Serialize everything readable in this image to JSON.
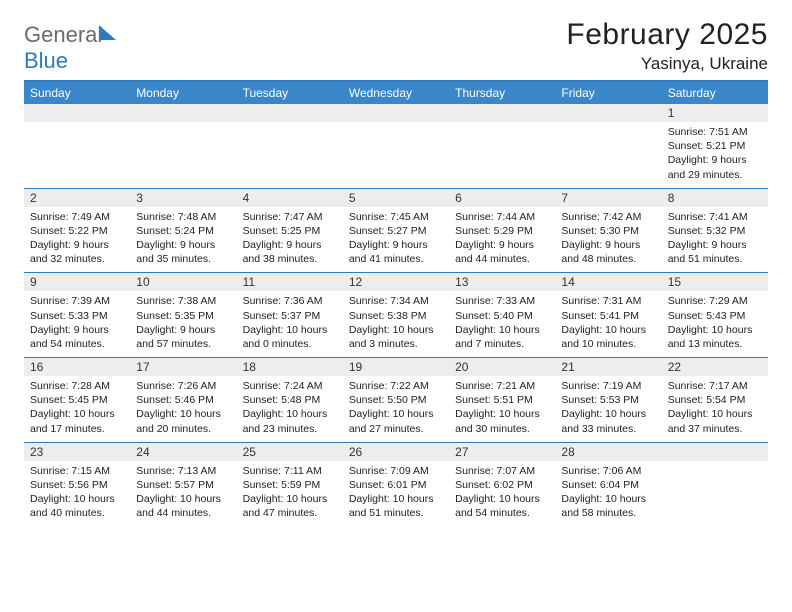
{
  "logo": {
    "word1": "General",
    "word2": "Blue",
    "accent_color": "#2e7bbf",
    "gray_color": "#6b6b6b"
  },
  "title": "February 2025",
  "location": "Yasinya, Ukraine",
  "colors": {
    "header_bg": "#3a86c8",
    "header_text": "#ffffff",
    "rule": "#2e7bbf",
    "daynum_bg": "#ededed",
    "text": "#222222"
  },
  "weekdays": [
    "Sunday",
    "Monday",
    "Tuesday",
    "Wednesday",
    "Thursday",
    "Friday",
    "Saturday"
  ],
  "weeks": [
    [
      {
        "empty": true
      },
      {
        "empty": true
      },
      {
        "empty": true
      },
      {
        "empty": true
      },
      {
        "empty": true
      },
      {
        "empty": true
      },
      {
        "n": "1",
        "sunrise": "7:51 AM",
        "sunset": "5:21 PM",
        "day_h": 9,
        "day_m": 29
      }
    ],
    [
      {
        "n": "2",
        "sunrise": "7:49 AM",
        "sunset": "5:22 PM",
        "day_h": 9,
        "day_m": 32
      },
      {
        "n": "3",
        "sunrise": "7:48 AM",
        "sunset": "5:24 PM",
        "day_h": 9,
        "day_m": 35
      },
      {
        "n": "4",
        "sunrise": "7:47 AM",
        "sunset": "5:25 PM",
        "day_h": 9,
        "day_m": 38
      },
      {
        "n": "5",
        "sunrise": "7:45 AM",
        "sunset": "5:27 PM",
        "day_h": 9,
        "day_m": 41
      },
      {
        "n": "6",
        "sunrise": "7:44 AM",
        "sunset": "5:29 PM",
        "day_h": 9,
        "day_m": 44
      },
      {
        "n": "7",
        "sunrise": "7:42 AM",
        "sunset": "5:30 PM",
        "day_h": 9,
        "day_m": 48
      },
      {
        "n": "8",
        "sunrise": "7:41 AM",
        "sunset": "5:32 PM",
        "day_h": 9,
        "day_m": 51
      }
    ],
    [
      {
        "n": "9",
        "sunrise": "7:39 AM",
        "sunset": "5:33 PM",
        "day_h": 9,
        "day_m": 54
      },
      {
        "n": "10",
        "sunrise": "7:38 AM",
        "sunset": "5:35 PM",
        "day_h": 9,
        "day_m": 57
      },
      {
        "n": "11",
        "sunrise": "7:36 AM",
        "sunset": "5:37 PM",
        "day_h": 10,
        "day_m": 0
      },
      {
        "n": "12",
        "sunrise": "7:34 AM",
        "sunset": "5:38 PM",
        "day_h": 10,
        "day_m": 3
      },
      {
        "n": "13",
        "sunrise": "7:33 AM",
        "sunset": "5:40 PM",
        "day_h": 10,
        "day_m": 7
      },
      {
        "n": "14",
        "sunrise": "7:31 AM",
        "sunset": "5:41 PM",
        "day_h": 10,
        "day_m": 10
      },
      {
        "n": "15",
        "sunrise": "7:29 AM",
        "sunset": "5:43 PM",
        "day_h": 10,
        "day_m": 13
      }
    ],
    [
      {
        "n": "16",
        "sunrise": "7:28 AM",
        "sunset": "5:45 PM",
        "day_h": 10,
        "day_m": 17
      },
      {
        "n": "17",
        "sunrise": "7:26 AM",
        "sunset": "5:46 PM",
        "day_h": 10,
        "day_m": 20
      },
      {
        "n": "18",
        "sunrise": "7:24 AM",
        "sunset": "5:48 PM",
        "day_h": 10,
        "day_m": 23
      },
      {
        "n": "19",
        "sunrise": "7:22 AM",
        "sunset": "5:50 PM",
        "day_h": 10,
        "day_m": 27
      },
      {
        "n": "20",
        "sunrise": "7:21 AM",
        "sunset": "5:51 PM",
        "day_h": 10,
        "day_m": 30
      },
      {
        "n": "21",
        "sunrise": "7:19 AM",
        "sunset": "5:53 PM",
        "day_h": 10,
        "day_m": 33
      },
      {
        "n": "22",
        "sunrise": "7:17 AM",
        "sunset": "5:54 PM",
        "day_h": 10,
        "day_m": 37
      }
    ],
    [
      {
        "n": "23",
        "sunrise": "7:15 AM",
        "sunset": "5:56 PM",
        "day_h": 10,
        "day_m": 40
      },
      {
        "n": "24",
        "sunrise": "7:13 AM",
        "sunset": "5:57 PM",
        "day_h": 10,
        "day_m": 44
      },
      {
        "n": "25",
        "sunrise": "7:11 AM",
        "sunset": "5:59 PM",
        "day_h": 10,
        "day_m": 47
      },
      {
        "n": "26",
        "sunrise": "7:09 AM",
        "sunset": "6:01 PM",
        "day_h": 10,
        "day_m": 51
      },
      {
        "n": "27",
        "sunrise": "7:07 AM",
        "sunset": "6:02 PM",
        "day_h": 10,
        "day_m": 54
      },
      {
        "n": "28",
        "sunrise": "7:06 AM",
        "sunset": "6:04 PM",
        "day_h": 10,
        "day_m": 58
      },
      {
        "empty": true
      }
    ]
  ]
}
